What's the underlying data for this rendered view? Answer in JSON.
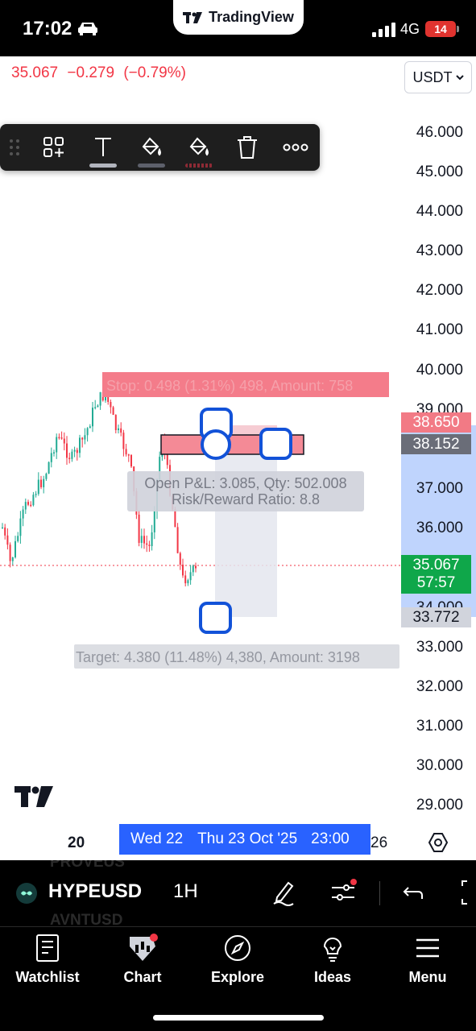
{
  "status_bar": {
    "time": "17:02",
    "app_pill": "TradingView",
    "network": "4G",
    "battery": "14"
  },
  "header": {
    "last_price": "35.067",
    "change": "−0.279",
    "change_pct": "(−0.79%)",
    "currency": "USDT",
    "price_color": "#f23645"
  },
  "toolbar": {
    "items": [
      "template-icon",
      "text-icon",
      "fill-color-icon",
      "border-color-icon",
      "delete-icon",
      "more-icon"
    ]
  },
  "price_axis": {
    "labels": [
      "46.000",
      "45.000",
      "44.000",
      "43.000",
      "42.000",
      "41.000",
      "40.000",
      "39.000",
      "37.000",
      "36.000",
      "34.000",
      "33.000",
      "32.000",
      "31.000",
      "30.000",
      "29.000"
    ],
    "tags": {
      "stop": "38.650",
      "entry": "38.152",
      "current_price": "35.067",
      "countdown": "57:57",
      "target": "33.772"
    }
  },
  "position_tool": {
    "stop_text": "Stop: 0.498 (1.31%) 498, Amount: 758",
    "open_pnl": "Open P&L: 3.085, Qty: 502.008",
    "risk_reward": "Risk/Reward Ratio: 8.8",
    "target_text": "Target: 4.380 (11.48%) 4,380, Amount: 3198"
  },
  "time_axis": {
    "left_label": "20",
    "banner": [
      "Wed 22",
      "Thu 23 Oct '25",
      "23:00"
    ],
    "right_label": "26"
  },
  "symbol_bar": {
    "symbol": "HYPEUSD",
    "interval": "1H",
    "ghost_above": "PROVEUS",
    "ghost_below": "AVNTUSD"
  },
  "nav": {
    "items": [
      {
        "label": "Watchlist",
        "icon": "watchlist-icon"
      },
      {
        "label": "Chart",
        "icon": "chart-icon"
      },
      {
        "label": "Explore",
        "icon": "compass-icon"
      },
      {
        "label": "Ideas",
        "icon": "lightbulb-icon"
      },
      {
        "label": "Menu",
        "icon": "menu-icon"
      }
    ]
  },
  "colors": {
    "up": "#22ab94",
    "down": "#f23645",
    "accent": "#2962ff",
    "current": "#089981"
  }
}
